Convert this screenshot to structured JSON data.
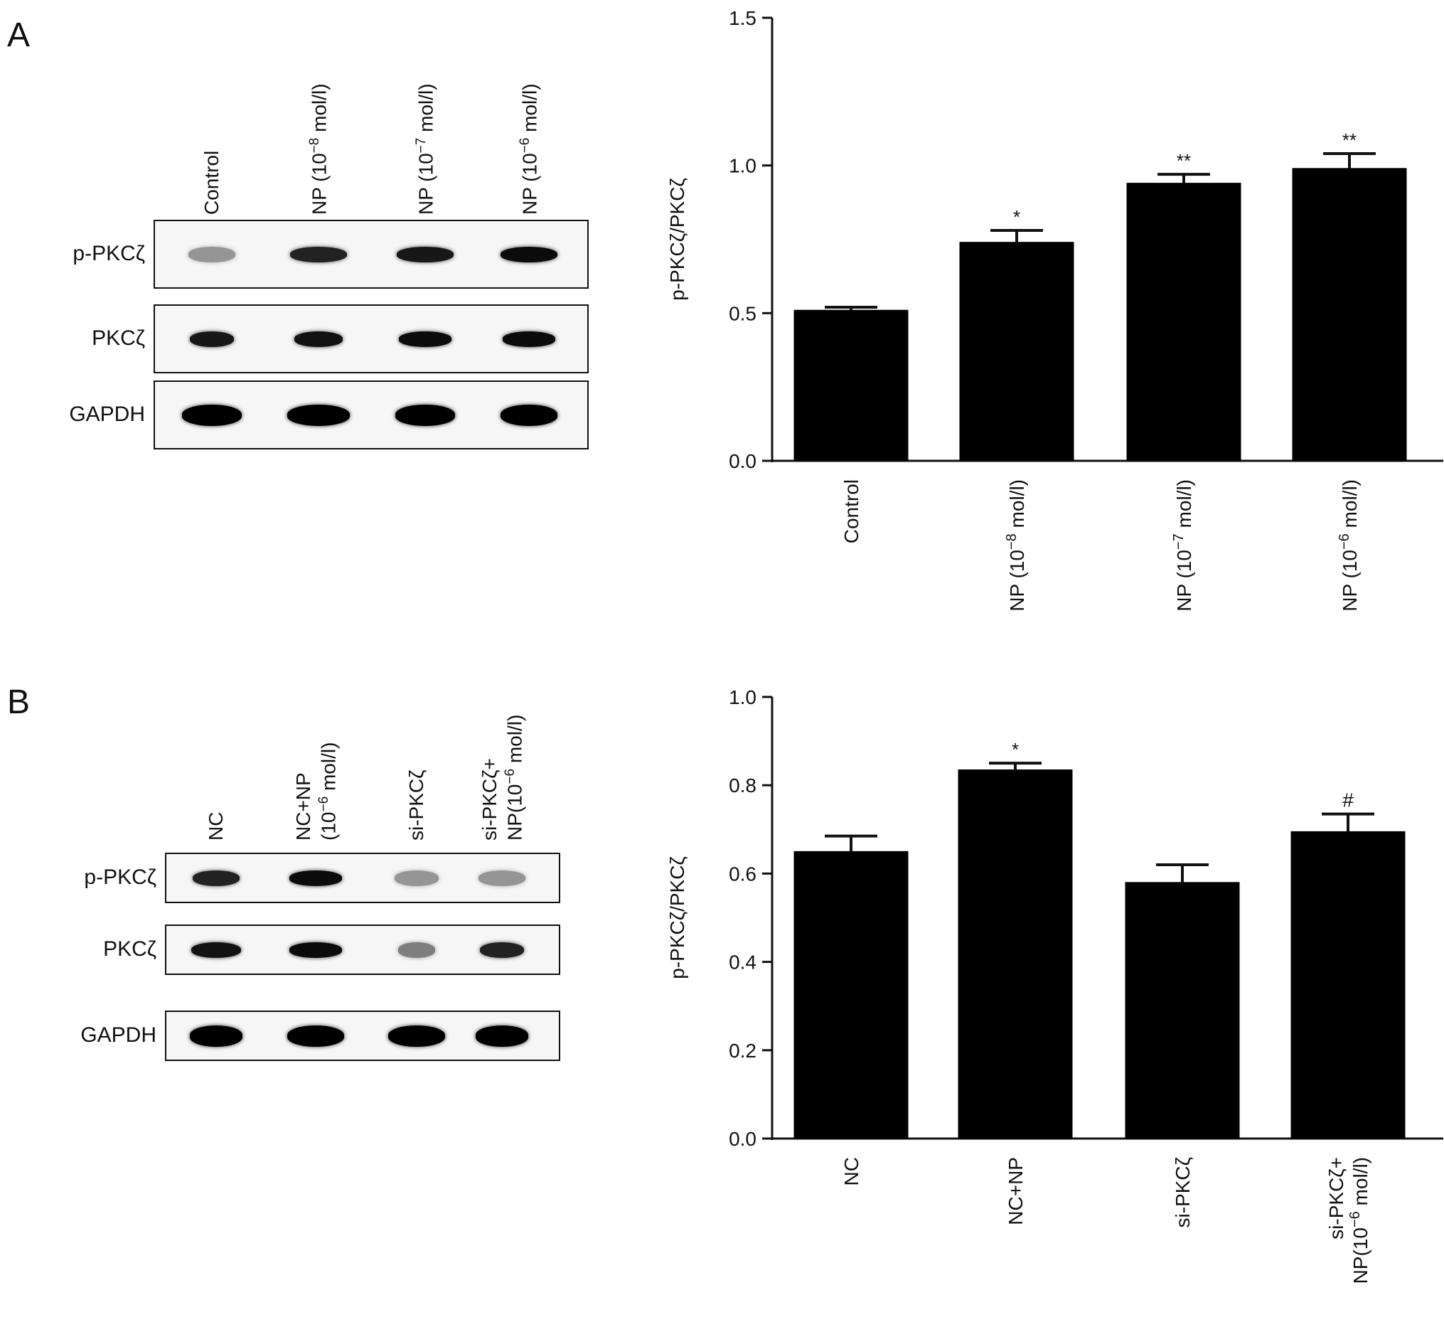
{
  "panels": [
    {
      "letter": "A",
      "blot": {
        "lanes": [
          {
            "text": "Control"
          },
          {
            "text": "NP (10",
            "sup": "−8",
            "tail": " mol/l)"
          },
          {
            "text": "NP (10",
            "sup": "−7",
            "tail": " mol/l)"
          },
          {
            "text": "NP (10",
            "sup": "−6",
            "tail": " mol/l)"
          }
        ],
        "rows": [
          {
            "label": "p-PKCζ",
            "intensity": [
              0.35,
              0.85,
              0.9,
              0.95
            ],
            "width": [
              0.75,
              0.9,
              0.9,
              0.9
            ]
          },
          {
            "label": "PKCζ",
            "intensity": [
              0.9,
              0.92,
              0.95,
              0.95
            ],
            "width": [
              0.7,
              0.78,
              0.85,
              0.85
            ]
          },
          {
            "label": "GAPDH",
            "intensity": [
              1,
              1,
              1,
              1
            ],
            "width": [
              0.95,
              1,
              0.95,
              0.9
            ]
          }
        ]
      },
      "chart_data": {
        "type": "bar",
        "ylabel": "p-PKCζ/PKCζ",
        "ylim": [
          0,
          1.5
        ],
        "yticks": [
          "0.0",
          "0.5",
          "1.0",
          "1.5"
        ],
        "categories": [
          {
            "text": "Control"
          },
          {
            "text": "NP (10",
            "sup": "−8",
            "tail": " mol/l)"
          },
          {
            "text": "NP (10",
            "sup": "−7",
            "tail": " mol/l)"
          },
          {
            "text": "NP (10",
            "sup": "−6",
            "tail": " mol/l)"
          }
        ],
        "values": [
          0.51,
          0.74,
          0.94,
          0.99
        ],
        "errors": [
          0.01,
          0.04,
          0.03,
          0.05
        ],
        "annotations": [
          "",
          "*",
          "**",
          "**"
        ],
        "bar_color": "#000000"
      }
    },
    {
      "letter": "B",
      "blot": {
        "lanes": [
          {
            "lines": [
              {
                "text": "NC"
              }
            ]
          },
          {
            "lines": [
              {
                "text": "NC+NP"
              },
              {
                "text": "(10",
                "sup": "−6",
                "tail": " mol/l)"
              }
            ]
          },
          {
            "lines": [
              {
                "text": "si-PKCζ"
              }
            ]
          },
          {
            "lines": [
              {
                "text": "si-PKCζ+"
              },
              {
                "text": "NP(10",
                "sup": "−6",
                "tail": " mol/l)"
              }
            ]
          }
        ],
        "rows": [
          {
            "label": "p-PKCζ",
            "intensity": [
              0.85,
              0.95,
              0.35,
              0.35
            ],
            "width": [
              0.75,
              0.85,
              0.7,
              0.75
            ]
          },
          {
            "label": "PKCζ",
            "intensity": [
              0.92,
              0.95,
              0.45,
              0.85
            ],
            "width": [
              0.8,
              0.85,
              0.6,
              0.7
            ]
          },
          {
            "label": "GAPDH",
            "intensity": [
              1,
              1,
              1,
              1
            ],
            "width": [
              0.85,
              0.9,
              0.9,
              0.85
            ]
          }
        ]
      },
      "chart_data": {
        "type": "bar",
        "ylabel": "p-PKCζ/PKCζ",
        "ylim": [
          0,
          1.0
        ],
        "yticks": [
          "0.0",
          "0.2",
          "0.4",
          "0.6",
          "0.8",
          "1.0"
        ],
        "categories": [
          {
            "lines": [
              {
                "text": "NC"
              }
            ]
          },
          {
            "lines": [
              {
                "text": "NC+NP"
              }
            ]
          },
          {
            "lines": [
              {
                "text": "si-PKCζ"
              }
            ]
          },
          {
            "lines": [
              {
                "text": "si-PKCζ+"
              },
              {
                "text": "NP(10",
                "sup": "−6",
                "tail": " mol/l)"
              }
            ]
          }
        ],
        "values": [
          0.65,
          0.835,
          0.58,
          0.695
        ],
        "errors": [
          0.035,
          0.015,
          0.04,
          0.04
        ],
        "annotations": [
          "",
          "*",
          "",
          "#"
        ],
        "bar_color": "#000000"
      }
    }
  ]
}
